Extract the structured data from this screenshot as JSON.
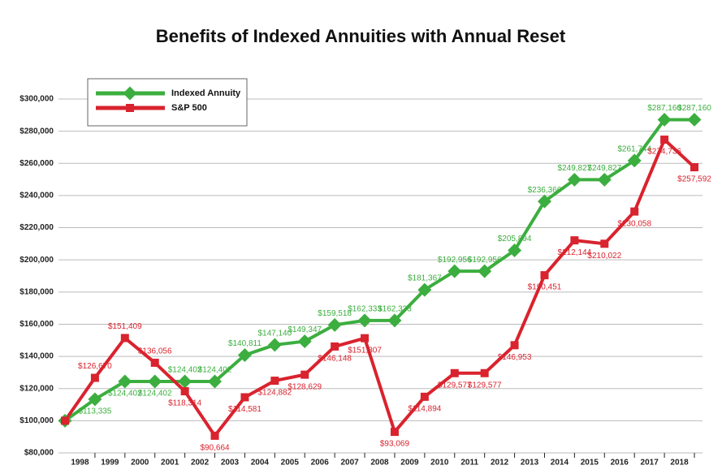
{
  "chart_data": {
    "type": "line",
    "title": "Benefits of Indexed Annuities with Annual Reset",
    "categories": [
      "1998",
      "1999",
      "2000",
      "2001",
      "2002",
      "2003",
      "2004",
      "2005",
      "2006",
      "2007",
      "2008",
      "2009",
      "2010",
      "2011",
      "2012",
      "2013",
      "2014",
      "2015",
      "2016",
      "2017",
      "2018",
      null
    ],
    "series": [
      {
        "name": "Indexed Annuity",
        "color": "#3cae3f",
        "values": [
          100000,
          113335,
          124402,
          124402,
          124402,
          124402,
          140811,
          147140,
          149347,
          159518,
          162333,
          162333,
          181367,
          192956,
          192956,
          205894,
          236366,
          249827,
          249827,
          261744,
          287160,
          287160
        ],
        "value_labels": [
          null,
          "$113,335",
          "$124,402",
          "$124,402",
          "$124,402",
          "$124,402",
          "$140,811",
          "$147,140",
          "$149,347",
          "$159,518",
          "$162,333",
          "$162,333",
          "$181,367",
          "$192,956",
          "$192,956",
          "$205,894",
          "$236,366",
          "$249,827",
          "$249,827",
          "$261,744",
          "$287,160",
          "$287,160"
        ]
      },
      {
        "name": "S&P 500",
        "color": "#d9232e",
        "values": [
          100000,
          126670,
          151409,
          136056,
          118314,
          90664,
          114581,
          124882,
          128629,
          146148,
          151307,
          93069,
          114894,
          129577,
          129577,
          146953,
          190451,
          212144,
          210022,
          230058,
          274736,
          257592
        ],
        "value_labels": [
          null,
          "$126,670",
          "$151,409",
          "$136,056",
          "$118,314",
          "$90,664",
          "$114,581",
          "$124,882",
          "$128,629",
          "$146,148",
          "$151,307",
          "$93,069",
          "$114,894",
          "$129,577",
          "$129,577",
          "$146,953",
          "$190,451",
          "$212,144",
          "$210,022",
          "$230,058",
          "$274,736",
          "$257,592"
        ]
      }
    ],
    "ylim": [
      80000,
      300000
    ],
    "yticks": [
      {
        "value": 80000,
        "label": "$80,000"
      },
      {
        "value": 100000,
        "label": "$100,000"
      },
      {
        "value": 120000,
        "label": "$120,000"
      },
      {
        "value": 140000,
        "label": "$140,000"
      },
      {
        "value": 160000,
        "label": "$160,000"
      },
      {
        "value": 180000,
        "label": "$180,000"
      },
      {
        "value": 200000,
        "label": "$200,000"
      },
      {
        "value": 220000,
        "label": "$220,000"
      },
      {
        "value": 240000,
        "label": "$240,000"
      },
      {
        "value": 260000,
        "label": "$260,000"
      },
      {
        "value": 280000,
        "label": "$280,000"
      },
      {
        "value": 300000,
        "label": "$300,000"
      }
    ],
    "grid": true,
    "legend": "top-left"
  }
}
